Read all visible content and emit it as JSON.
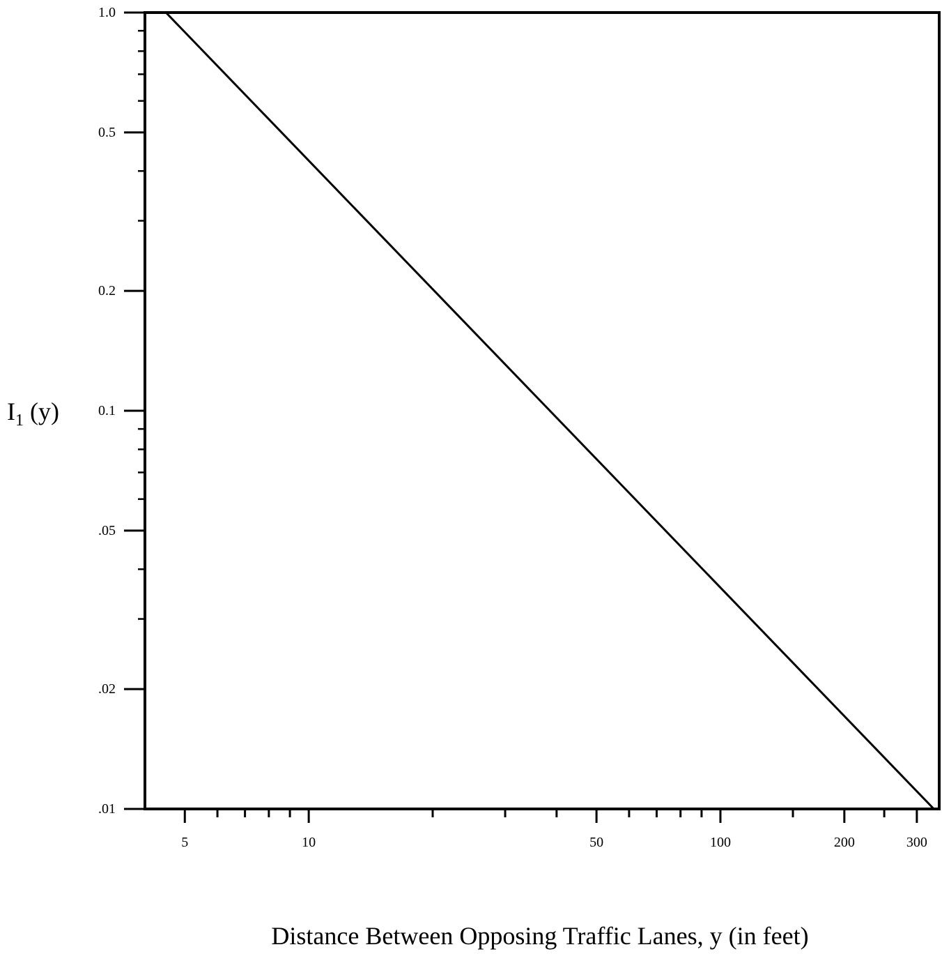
{
  "chart_data": {
    "type": "line",
    "title": "",
    "xlabel": "Distance Between Opposing Traffic Lanes, y (in feet)",
    "ylabel_main": "I",
    "ylabel_sub": "1",
    "ylabel_tail": " (y)",
    "x_scale": "log",
    "y_scale": "log",
    "xlim": [
      4,
      340
    ],
    "ylim": [
      0.01,
      1.0
    ],
    "grid": false,
    "x_ticks": [
      {
        "value": 5,
        "label": "5"
      },
      {
        "value": 10,
        "label": "10"
      },
      {
        "value": 50,
        "label": "50"
      },
      {
        "value": 100,
        "label": "100"
      },
      {
        "value": 200,
        "label": "200"
      },
      {
        "value": 300,
        "label": "300"
      }
    ],
    "x_minor_ticks": [
      6,
      7,
      8,
      9,
      20,
      30,
      40,
      60,
      70,
      80,
      90,
      150,
      250
    ],
    "y_ticks": [
      {
        "value": 1.0,
        "label": "1.0"
      },
      {
        "value": 0.5,
        "label": "0.5"
      },
      {
        "value": 0.2,
        "label": "0.2"
      },
      {
        "value": 0.1,
        "label": "0.1"
      },
      {
        "value": 0.05,
        "label": ".05"
      },
      {
        "value": 0.02,
        "label": ".02"
      },
      {
        "value": 0.01,
        "label": ".01"
      }
    ],
    "y_minor_ticks": [
      0.9,
      0.8,
      0.7,
      0.6,
      0.4,
      0.3,
      0.09,
      0.08,
      0.07,
      0.06,
      0.04,
      0.03
    ],
    "series": [
      {
        "x": [
          4.5,
          330
        ],
        "y": [
          1.0,
          0.01
        ]
      }
    ]
  }
}
